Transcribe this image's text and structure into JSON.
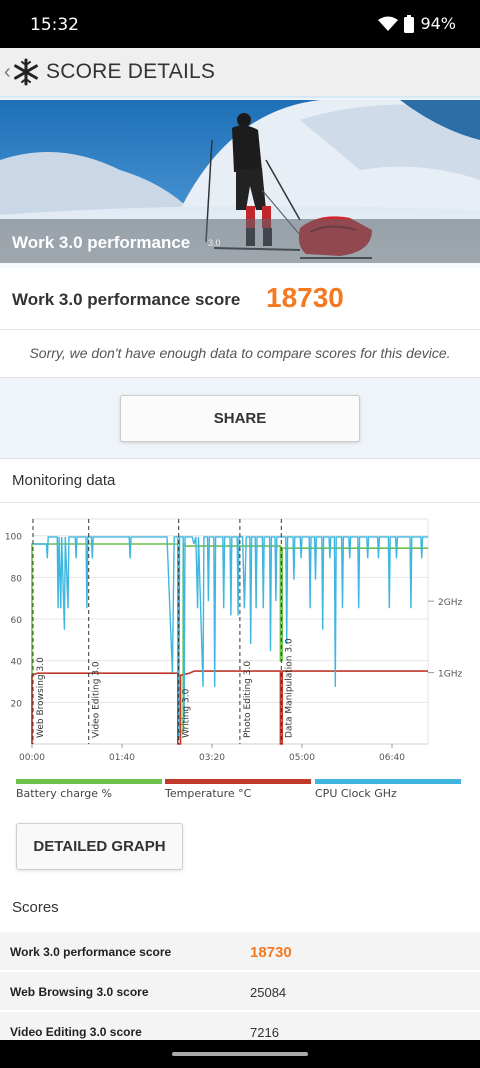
{
  "status_bar": {
    "time": "15:32",
    "battery": "94%",
    "wifi_icon": "wifi-icon",
    "battery_icon": "battery-icon"
  },
  "app_bar": {
    "title": "SCORE DETAILS",
    "back_icon": "chevron-left-icon",
    "logo_icon": "snowflake-icon"
  },
  "hero": {
    "label": "Work 3.0 performance",
    "version": "3.0"
  },
  "score": {
    "label": "Work 3.0 performance score",
    "value": "18730",
    "accent": "#f47920"
  },
  "compare": {
    "message": "Sorry, we don't have enough data to compare scores for this device."
  },
  "share_label": "SHARE",
  "monitoring": {
    "title": "Monitoring data",
    "detailed_graph_label": "DETAILED GRAPH",
    "legend": [
      {
        "label": "Battery charge %",
        "color": "#6cc24a"
      },
      {
        "label": "Temperature °C",
        "color": "#c0392b"
      },
      {
        "label": "CPU Clock GHz",
        "color": "#3fb6e0"
      }
    ]
  },
  "chart_data": {
    "type": "line",
    "x_unit": "seconds",
    "x_ticks": [
      {
        "label": "00:00",
        "t": 0
      },
      {
        "label": "01:40",
        "t": 100
      },
      {
        "label": "03:20",
        "t": 200
      },
      {
        "label": "05:00",
        "t": 300
      },
      {
        "label": "06:40",
        "t": 400
      }
    ],
    "xlim": [
      0,
      440
    ],
    "y_ticks_left": [
      20,
      40,
      60,
      80,
      100
    ],
    "ylim_left": [
      0,
      108
    ],
    "y_ticks_right": [
      {
        "label": "1GHz",
        "value": 1
      },
      {
        "label": "2GHz",
        "value": 2
      }
    ],
    "ylim_right": [
      0,
      3.15
    ],
    "phases": [
      {
        "label": "Web Browsing 3.0",
        "t": 0
      },
      {
        "label": "Video Editing 3.0",
        "t": 63
      },
      {
        "label": "Writing 3.0",
        "t": 163
      },
      {
        "label": "Photo Editing 3.0",
        "t": 231
      },
      {
        "label": "Data Manipulation 3.0",
        "t": 277
      }
    ],
    "series": [
      {
        "name": "Battery charge %",
        "color": "#6cc24a",
        "axis": "left",
        "points": [
          [
            0,
            0
          ],
          [
            0,
            96
          ],
          [
            162,
            96
          ],
          [
            162,
            6
          ],
          [
            168,
            6
          ],
          [
            168,
            96
          ],
          [
            170,
            96
          ],
          [
            170,
            95
          ],
          [
            276,
            95
          ],
          [
            276,
            40
          ],
          [
            278,
            40
          ],
          [
            278,
            94
          ],
          [
            440,
            94
          ]
        ]
      },
      {
        "name": "Temperature °C",
        "color": "#c0392b",
        "axis": "left",
        "points": [
          [
            0,
            0
          ],
          [
            0,
            33
          ],
          [
            6,
            34
          ],
          [
            162,
            34
          ],
          [
            162,
            0
          ],
          [
            165,
            0
          ],
          [
            165,
            33
          ],
          [
            175,
            34
          ],
          [
            180,
            35
          ],
          [
            276,
            35
          ],
          [
            276,
            0
          ],
          [
            278,
            0
          ],
          [
            278,
            35
          ],
          [
            440,
            35
          ]
        ]
      },
      {
        "name": "CPU Clock GHz",
        "color": "#3fb6e0",
        "axis": "right",
        "points": [
          [
            2,
            2.8
          ],
          [
            10,
            2.8
          ],
          [
            16,
            2.8
          ],
          [
            17,
            2.6
          ],
          [
            18,
            2.9
          ],
          [
            28,
            2.9
          ],
          [
            29,
            1.9
          ],
          [
            30,
            2.9
          ],
          [
            32,
            1.9
          ],
          [
            33,
            2.9
          ],
          [
            36,
            1.6
          ],
          [
            37,
            2.9
          ],
          [
            40,
            1.9
          ],
          [
            41,
            2.9
          ],
          [
            48,
            2.9
          ],
          [
            49,
            2.6
          ],
          [
            50,
            2.9
          ],
          [
            60,
            2.9
          ],
          [
            61,
            1.9
          ],
          [
            62,
            2.9
          ],
          [
            66,
            2.9
          ],
          [
            67,
            2.6
          ],
          [
            68,
            2.9
          ],
          [
            108,
            2.9
          ],
          [
            109,
            2.6
          ],
          [
            110,
            2.9
          ],
          [
            150,
            2.9
          ],
          [
            156,
            1.0
          ],
          [
            158,
            2.9
          ],
          [
            162,
            2.9
          ],
          [
            163,
            0.1
          ],
          [
            164,
            2.9
          ],
          [
            168,
            2.9
          ],
          [
            169,
            0.3
          ],
          [
            170,
            2.9
          ],
          [
            178,
            2.9
          ],
          [
            180,
            2.8
          ],
          [
            182,
            2.9
          ],
          [
            184,
            1.9
          ],
          [
            185,
            2.9
          ],
          [
            190,
            0.8
          ],
          [
            191,
            2.9
          ],
          [
            195,
            2.9
          ],
          [
            196,
            2.0
          ],
          [
            197,
            2.9
          ],
          [
            202,
            2.9
          ],
          [
            203,
            0.8
          ],
          [
            204,
            2.9
          ],
          [
            212,
            2.9
          ],
          [
            213,
            1.9
          ],
          [
            214,
            2.9
          ],
          [
            220,
            2.9
          ],
          [
            221,
            1.8
          ],
          [
            222,
            2.9
          ],
          [
            228,
            2.9
          ],
          [
            229,
            1.8
          ],
          [
            230,
            2.9
          ],
          [
            234,
            2.9
          ],
          [
            236,
            1.9
          ],
          [
            238,
            2.9
          ],
          [
            242,
            2.9
          ],
          [
            243,
            1.4
          ],
          [
            244,
            2.9
          ],
          [
            248,
            2.9
          ],
          [
            249,
            1.9
          ],
          [
            250,
            2.9
          ],
          [
            256,
            2.9
          ],
          [
            257,
            1.9
          ],
          [
            258,
            2.9
          ],
          [
            264,
            2.9
          ],
          [
            265,
            1.3
          ],
          [
            266,
            2.9
          ],
          [
            270,
            2.9
          ],
          [
            271,
            2.0
          ],
          [
            272,
            2.9
          ],
          [
            282,
            2.9
          ],
          [
            283,
            1.4
          ],
          [
            284,
            2.9
          ],
          [
            290,
            2.9
          ],
          [
            291,
            2.3
          ],
          [
            292,
            2.9
          ],
          [
            298,
            2.9
          ],
          [
            299,
            2.6
          ],
          [
            300,
            2.9
          ],
          [
            308,
            2.9
          ],
          [
            309,
            1.9
          ],
          [
            310,
            2.9
          ],
          [
            314,
            2.9
          ],
          [
            315,
            2.3
          ],
          [
            316,
            2.9
          ],
          [
            322,
            2.9
          ],
          [
            323,
            1.6
          ],
          [
            324,
            2.9
          ],
          [
            330,
            2.9
          ],
          [
            331,
            2.6
          ],
          [
            332,
            2.9
          ],
          [
            336,
            2.9
          ],
          [
            337,
            0.8
          ],
          [
            338,
            2.9
          ],
          [
            344,
            2.9
          ],
          [
            345,
            1.9
          ],
          [
            346,
            2.9
          ],
          [
            352,
            2.9
          ],
          [
            353,
            2.6
          ],
          [
            354,
            2.9
          ],
          [
            362,
            2.9
          ],
          [
            363,
            1.9
          ],
          [
            364,
            2.9
          ],
          [
            372,
            2.9
          ],
          [
            373,
            2.6
          ],
          [
            374,
            2.9
          ],
          [
            384,
            2.9
          ],
          [
            385,
            2.6
          ],
          [
            386,
            2.9
          ],
          [
            396,
            2.9
          ],
          [
            397,
            1.9
          ],
          [
            398,
            2.9
          ],
          [
            404,
            2.9
          ],
          [
            405,
            2.6
          ],
          [
            406,
            2.9
          ],
          [
            420,
            2.9
          ],
          [
            421,
            1.9
          ],
          [
            422,
            2.9
          ],
          [
            432,
            2.9
          ],
          [
            433,
            2.6
          ],
          [
            434,
            2.9
          ],
          [
            440,
            2.9
          ]
        ]
      }
    ]
  },
  "scores": {
    "title": "Scores",
    "rows": [
      {
        "name": "Work 3.0 performance score",
        "value": "18730"
      },
      {
        "name": "Web Browsing 3.0 score",
        "value": "25084"
      },
      {
        "name": "Video Editing 3.0 score",
        "value": "7216"
      }
    ]
  }
}
